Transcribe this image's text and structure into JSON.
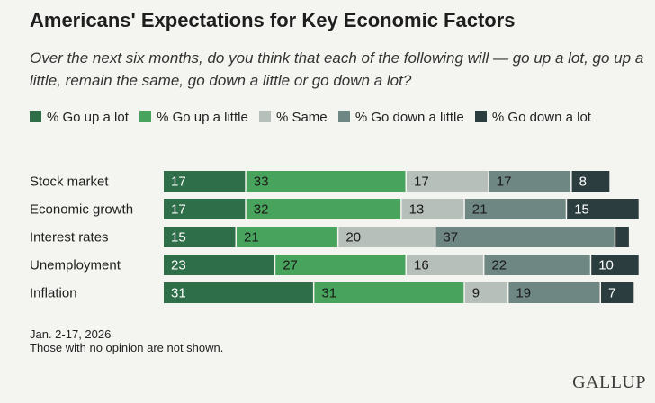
{
  "chart_data": {
    "type": "bar",
    "orientation": "horizontal",
    "stacked": true,
    "title": "Americans' Expectations for Key Economic Factors",
    "subtitle": "Over the next six months, do you think that each of the following will — go up a lot, go up a little, remain the same, go down a little or go down a lot?",
    "categories": [
      "Stock market",
      "Economic growth",
      "Interest rates",
      "Unemployment",
      "Inflation"
    ],
    "series": [
      {
        "name": "% Go up a lot",
        "color": "#2e6e48",
        "values": [
          17,
          17,
          15,
          23,
          31
        ]
      },
      {
        "name": "% Go up a little",
        "color": "#48a45c",
        "values": [
          33,
          32,
          21,
          27,
          31
        ]
      },
      {
        "name": "% Same",
        "color": "#b7bfba",
        "values": [
          17,
          13,
          20,
          16,
          9
        ]
      },
      {
        "name": "% Go down a little",
        "color": "#6f8783",
        "values": [
          17,
          21,
          37,
          22,
          19
        ]
      },
      {
        "name": "% Go down a lot",
        "color": "#2b3d3f",
        "values": [
          8,
          15,
          3,
          10,
          7
        ]
      }
    ],
    "value_labels_hidden": [
      [
        false,
        false,
        false,
        false,
        false
      ],
      [
        false,
        false,
        false,
        false,
        false
      ],
      [
        false,
        false,
        false,
        false,
        true
      ],
      [
        false,
        false,
        false,
        false,
        false
      ],
      [
        false,
        false,
        false,
        false,
        false
      ]
    ],
    "xlim": [
      0,
      100
    ],
    "legend": "top",
    "grid": false
  },
  "footnote": {
    "dates": "Jan. 2-17, 2026",
    "note": "Those with no opinion are not shown."
  },
  "brand": "GALLUP"
}
